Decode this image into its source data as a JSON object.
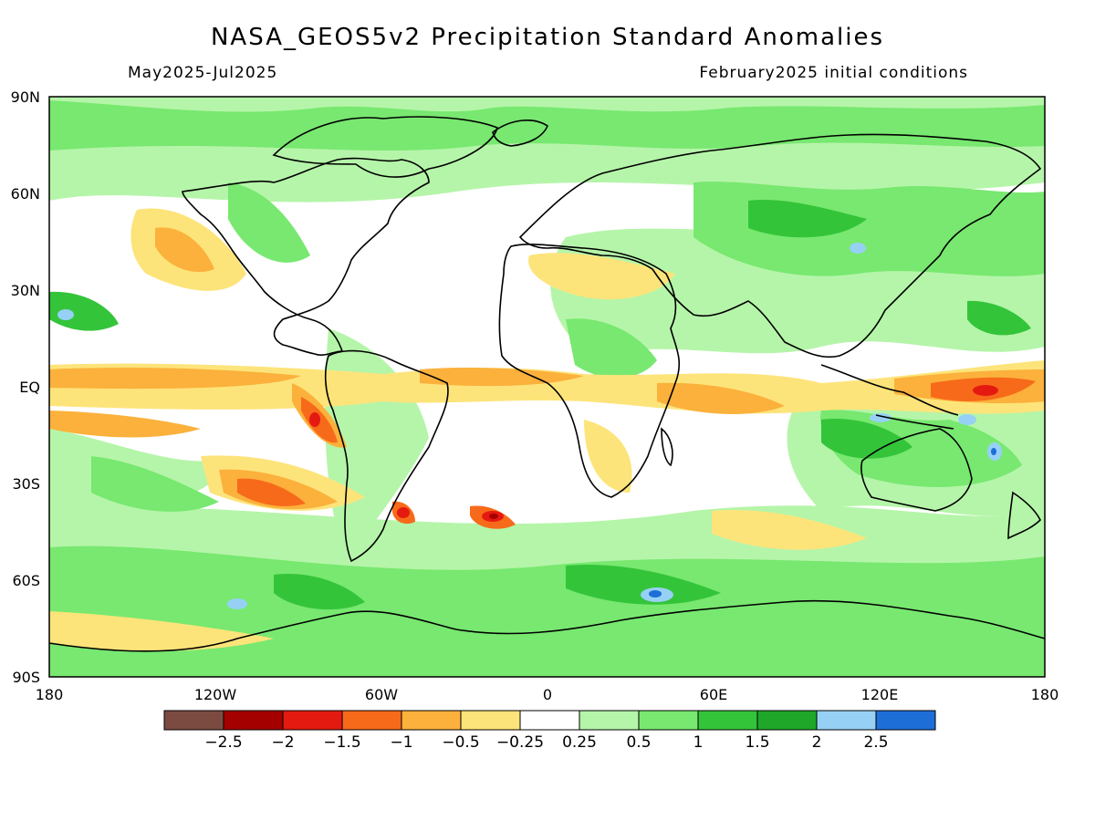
{
  "header": {
    "title": "NASA_GEOS5v2 Precipitation Standard Anomalies",
    "left_subtitle": "May2025-Jul2025",
    "right_subtitle": "February2025 initial conditions"
  },
  "axes": {
    "lat_ticks": [
      "90N",
      "60N",
      "30N",
      "EQ",
      "30S",
      "60S",
      "90S"
    ],
    "lon_ticks": [
      "180",
      "120W",
      "60W",
      "0",
      "60E",
      "120E",
      "180"
    ]
  },
  "colorbar": {
    "labels": [
      "-2.5",
      "-2",
      "-1.5",
      "-1",
      "-0.5",
      "-0.25",
      "0.25",
      "0.5",
      "1",
      "1.5",
      "2",
      "2.5"
    ],
    "colors": [
      "#7b4b42",
      "#a50000",
      "#e41a10",
      "#f76a1a",
      "#fbb13c",
      "#fde47a",
      "#ffffff",
      "#b5f5a9",
      "#78e870",
      "#34c43a",
      "#1fa72a",
      "#96d1f5",
      "#1e6ed8"
    ]
  },
  "chart_data": {
    "type": "heatmap",
    "title": "NASA_GEOS5v2 Precipitation Standard Anomalies",
    "period": "May2025-Jul2025",
    "initial_conditions": "February2025 initial conditions",
    "x_range": [
      -180,
      180
    ],
    "y_range": [
      -90,
      90
    ],
    "color_levels": [
      -2.5,
      -2,
      -1.5,
      -1,
      -0.5,
      -0.25,
      0.25,
      0.5,
      1,
      1.5,
      2,
      2.5
    ]
  }
}
